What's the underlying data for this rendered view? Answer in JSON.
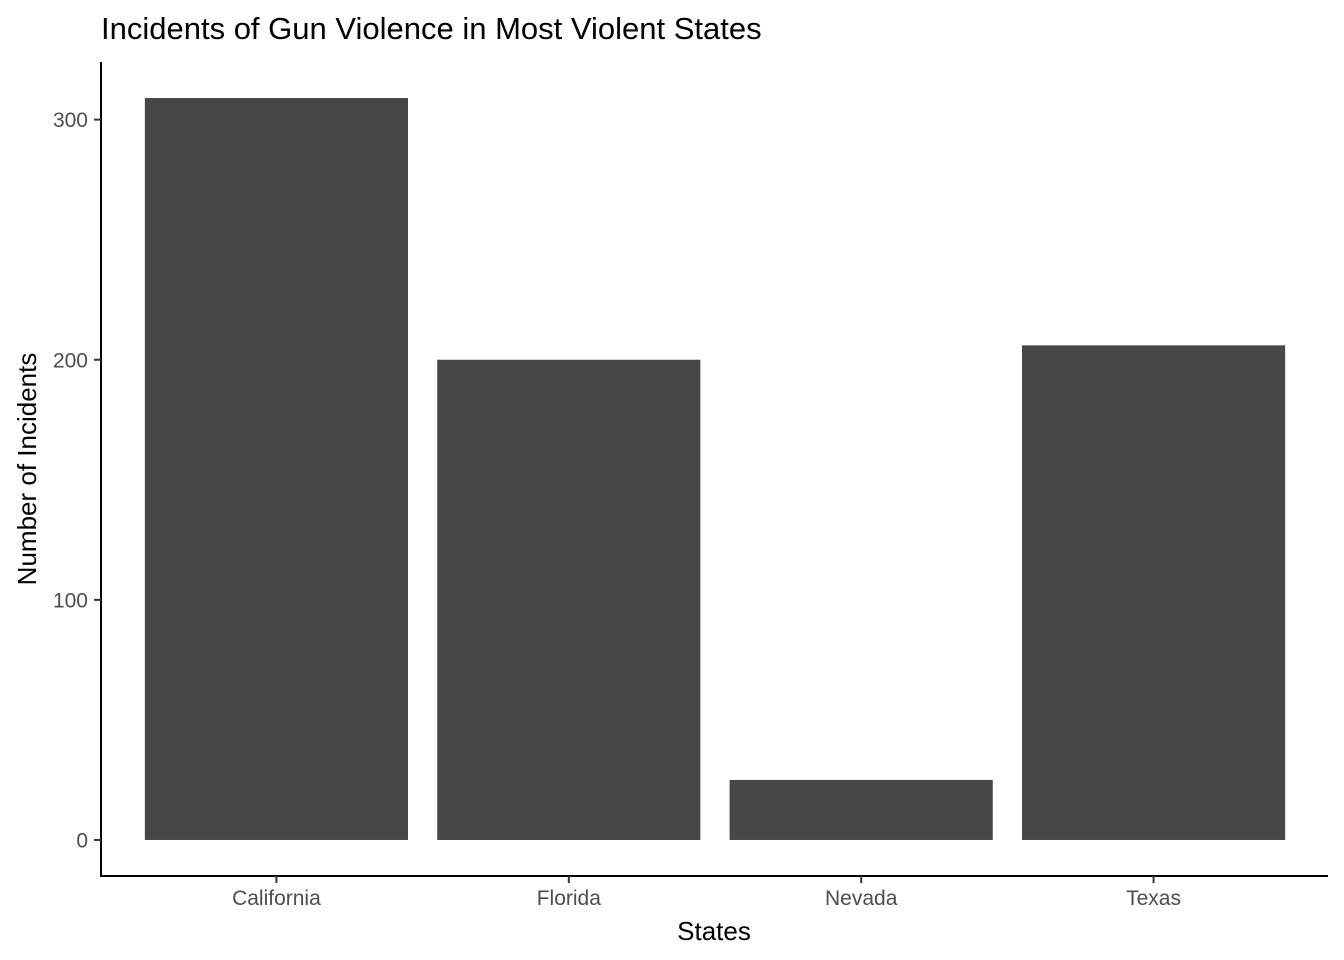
{
  "chart_data": {
    "type": "bar",
    "title": "Incidents of Gun Violence in Most Violent States",
    "xlabel": "States",
    "ylabel": "Number of Incidents",
    "categories": [
      "California",
      "Florida",
      "Nevada",
      "Texas"
    ],
    "values": [
      309,
      200,
      25,
      206
    ],
    "ylim": [
      -15,
      324
    ],
    "yticks": [
      0,
      100,
      200,
      300
    ],
    "grid": false,
    "legend": "none",
    "colors": {
      "bar": "#474747",
      "axis": "#000000",
      "tick_label": "#4d4d4d"
    }
  }
}
